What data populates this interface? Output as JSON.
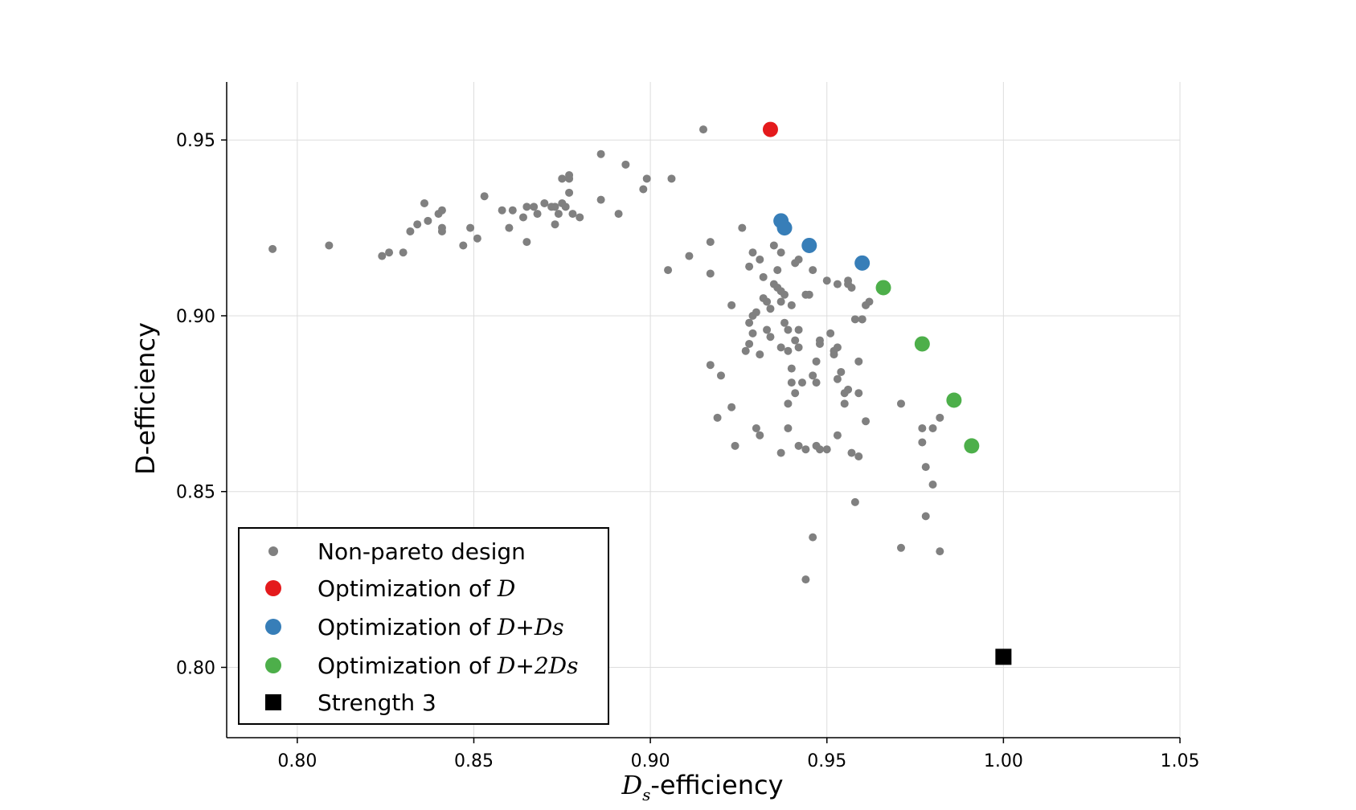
{
  "chart_data": {
    "type": "scatter",
    "xlabel_symbol": "D",
    "xlabel_subscript": "s",
    "xlabel_suffix": "-efficiency",
    "ylabel": "D-efficiency",
    "xlim": [
      0.78,
      1.05
    ],
    "ylim": [
      0.78,
      0.9665
    ],
    "x_ticks": [
      0.8,
      0.85,
      0.9,
      0.95,
      1.0,
      1.05
    ],
    "x_tick_labels": [
      "0.80",
      "0.85",
      "0.90",
      "0.95",
      "1.00",
      "1.05"
    ],
    "y_ticks": [
      0.8,
      0.85,
      0.9,
      0.95
    ],
    "y_tick_labels": [
      "0.80",
      "0.85",
      "0.90",
      "0.95"
    ],
    "grid": true,
    "legend_position": "lower-left",
    "legend": [
      {
        "text": "Non-pareto design",
        "math": ""
      },
      {
        "text": "Optimization of ",
        "math": "D"
      },
      {
        "text": "Optimization of ",
        "math": "D+Ds"
      },
      {
        "text": "Optimization of ",
        "math": "D+2Ds"
      },
      {
        "text": "Strength 3",
        "math": ""
      }
    ],
    "series": [
      {
        "name": "Non-pareto design",
        "marker": "small-circle",
        "color": "#808080",
        "points": [
          [
            0.793,
            0.919
          ],
          [
            0.809,
            0.92
          ],
          [
            0.824,
            0.917
          ],
          [
            0.826,
            0.918
          ],
          [
            0.83,
            0.918
          ],
          [
            0.832,
            0.924
          ],
          [
            0.834,
            0.926
          ],
          [
            0.836,
            0.932
          ],
          [
            0.837,
            0.927
          ],
          [
            0.84,
            0.929
          ],
          [
            0.841,
            0.925
          ],
          [
            0.841,
            0.93
          ],
          [
            0.841,
            0.924
          ],
          [
            0.847,
            0.92
          ],
          [
            0.849,
            0.925
          ],
          [
            0.851,
            0.922
          ],
          [
            0.853,
            0.934
          ],
          [
            0.858,
            0.93
          ],
          [
            0.86,
            0.925
          ],
          [
            0.861,
            0.93
          ],
          [
            0.864,
            0.928
          ],
          [
            0.865,
            0.931
          ],
          [
            0.865,
            0.921
          ],
          [
            0.867,
            0.931
          ],
          [
            0.868,
            0.929
          ],
          [
            0.87,
            0.932
          ],
          [
            0.872,
            0.931
          ],
          [
            0.873,
            0.931
          ],
          [
            0.873,
            0.926
          ],
          [
            0.874,
            0.929
          ],
          [
            0.875,
            0.939
          ],
          [
            0.875,
            0.932
          ],
          [
            0.876,
            0.931
          ],
          [
            0.877,
            0.939
          ],
          [
            0.877,
            0.935
          ],
          [
            0.877,
            0.94
          ],
          [
            0.878,
            0.929
          ],
          [
            0.88,
            0.928
          ],
          [
            0.886,
            0.946
          ],
          [
            0.886,
            0.933
          ],
          [
            0.891,
            0.929
          ],
          [
            0.893,
            0.943
          ],
          [
            0.898,
            0.936
          ],
          [
            0.899,
            0.939
          ],
          [
            0.906,
            0.939
          ],
          [
            0.905,
            0.913
          ],
          [
            0.911,
            0.917
          ],
          [
            0.915,
            0.953
          ],
          [
            0.917,
            0.921
          ],
          [
            0.917,
            0.912
          ],
          [
            0.917,
            0.886
          ],
          [
            0.919,
            0.871
          ],
          [
            0.92,
            0.883
          ],
          [
            0.923,
            0.874
          ],
          [
            0.923,
            0.903
          ],
          [
            0.924,
            0.863
          ],
          [
            0.926,
            0.925
          ],
          [
            0.927,
            0.89
          ],
          [
            0.928,
            0.914
          ],
          [
            0.928,
            0.892
          ],
          [
            0.928,
            0.898
          ],
          [
            0.929,
            0.918
          ],
          [
            0.929,
            0.895
          ],
          [
            0.929,
            0.9
          ],
          [
            0.93,
            0.901
          ],
          [
            0.93,
            0.868
          ],
          [
            0.931,
            0.916
          ],
          [
            0.931,
            0.889
          ],
          [
            0.931,
            0.866
          ],
          [
            0.932,
            0.911
          ],
          [
            0.932,
            0.905
          ],
          [
            0.933,
            0.904
          ],
          [
            0.933,
            0.896
          ],
          [
            0.934,
            0.902
          ],
          [
            0.934,
            0.894
          ],
          [
            0.935,
            0.92
          ],
          [
            0.935,
            0.909
          ],
          [
            0.936,
            0.908
          ],
          [
            0.936,
            0.913
          ],
          [
            0.937,
            0.918
          ],
          [
            0.937,
            0.907
          ],
          [
            0.937,
            0.904
          ],
          [
            0.937,
            0.891
          ],
          [
            0.937,
            0.861
          ],
          [
            0.938,
            0.898
          ],
          [
            0.938,
            0.906
          ],
          [
            0.939,
            0.896
          ],
          [
            0.939,
            0.89
          ],
          [
            0.939,
            0.868
          ],
          [
            0.939,
            0.875
          ],
          [
            0.94,
            0.881
          ],
          [
            0.94,
            0.885
          ],
          [
            0.94,
            0.903
          ],
          [
            0.941,
            0.915
          ],
          [
            0.941,
            0.893
          ],
          [
            0.941,
            0.878
          ],
          [
            0.942,
            0.916
          ],
          [
            0.942,
            0.896
          ],
          [
            0.942,
            0.891
          ],
          [
            0.942,
            0.863
          ],
          [
            0.943,
            0.881
          ],
          [
            0.944,
            0.906
          ],
          [
            0.944,
            0.862
          ],
          [
            0.944,
            0.825
          ],
          [
            0.945,
            0.906
          ],
          [
            0.946,
            0.913
          ],
          [
            0.946,
            0.883
          ],
          [
            0.946,
            0.837
          ],
          [
            0.947,
            0.887
          ],
          [
            0.947,
            0.881
          ],
          [
            0.947,
            0.863
          ],
          [
            0.948,
            0.892
          ],
          [
            0.948,
            0.893
          ],
          [
            0.948,
            0.862
          ],
          [
            0.95,
            0.91
          ],
          [
            0.95,
            0.862
          ],
          [
            0.951,
            0.895
          ],
          [
            0.952,
            0.889
          ],
          [
            0.952,
            0.89
          ],
          [
            0.953,
            0.891
          ],
          [
            0.953,
            0.882
          ],
          [
            0.953,
            0.866
          ],
          [
            0.953,
            0.909
          ],
          [
            0.954,
            0.884
          ],
          [
            0.955,
            0.878
          ],
          [
            0.955,
            0.875
          ],
          [
            0.956,
            0.91
          ],
          [
            0.956,
            0.909
          ],
          [
            0.956,
            0.879
          ],
          [
            0.957,
            0.908
          ],
          [
            0.957,
            0.861
          ],
          [
            0.958,
            0.899
          ],
          [
            0.958,
            0.847
          ],
          [
            0.959,
            0.887
          ],
          [
            0.959,
            0.878
          ],
          [
            0.959,
            0.86
          ],
          [
            0.96,
            0.899
          ],
          [
            0.96,
            0.899
          ],
          [
            0.961,
            0.87
          ],
          [
            0.961,
            0.903
          ],
          [
            0.962,
            0.904
          ],
          [
            0.971,
            0.875
          ],
          [
            0.971,
            0.834
          ],
          [
            0.977,
            0.868
          ],
          [
            0.977,
            0.864
          ],
          [
            0.978,
            0.857
          ],
          [
            0.978,
            0.843
          ],
          [
            0.98,
            0.852
          ],
          [
            0.98,
            0.868
          ],
          [
            0.982,
            0.871
          ],
          [
            0.982,
            0.833
          ]
        ]
      },
      {
        "name": "Optimization of D",
        "marker": "circle",
        "color": "#e41a1c",
        "points": [
          [
            0.934,
            0.953
          ]
        ]
      },
      {
        "name": "Optimization of D+Ds",
        "marker": "circle",
        "color": "#377eb8",
        "points": [
          [
            0.937,
            0.927
          ],
          [
            0.938,
            0.925
          ],
          [
            0.945,
            0.92
          ],
          [
            0.96,
            0.915
          ]
        ]
      },
      {
        "name": "Optimization of D+2Ds",
        "marker": "circle",
        "color": "#4daf4a",
        "points": [
          [
            0.966,
            0.908
          ],
          [
            0.977,
            0.892
          ],
          [
            0.986,
            0.876
          ],
          [
            0.991,
            0.863
          ]
        ]
      },
      {
        "name": "Strength 3",
        "marker": "square",
        "color": "#000000",
        "points": [
          [
            1.0,
            0.803
          ]
        ]
      }
    ]
  }
}
